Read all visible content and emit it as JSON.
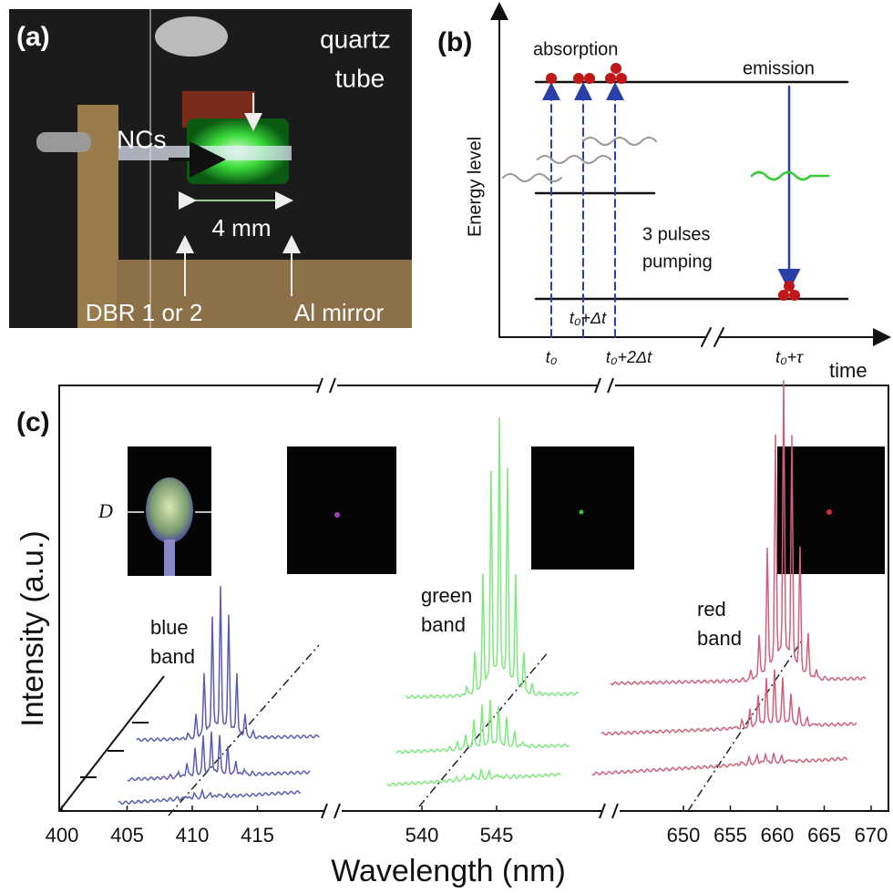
{
  "panel_a": {
    "label": "(a)",
    "quartz_tube": [
      "quartz",
      "tube"
    ],
    "ncs": "NCs",
    "length": "4 mm",
    "dbr": "DBR 1 or 2",
    "mirror": "Al mirror"
  },
  "panel_b": {
    "label": "(b)",
    "absorption": "absorption",
    "emission": "emission",
    "y_axis": "Energy level",
    "pumping": [
      "3 pulses",
      "pumping"
    ],
    "times": [
      "t₀",
      "t₀+Δt",
      "t₀+2Δt",
      "t₀+τ"
    ],
    "x_axis": "time"
  },
  "panel_c": {
    "label": "(c)",
    "y_axis": "Intensity (a.u.)",
    "x_axis": "Wavelength (nm)",
    "bands": [
      [
        "blue",
        "band"
      ],
      [
        "green",
        "band"
      ],
      [
        "red",
        "band"
      ]
    ],
    "inset_label": "D",
    "axis_segments": [
      {
        "ticks": [
          400,
          405,
          410,
          415
        ]
      },
      {
        "ticks": [
          540,
          545
        ]
      },
      {
        "ticks": [
          650,
          655,
          660,
          665,
          670
        ]
      }
    ]
  }
}
